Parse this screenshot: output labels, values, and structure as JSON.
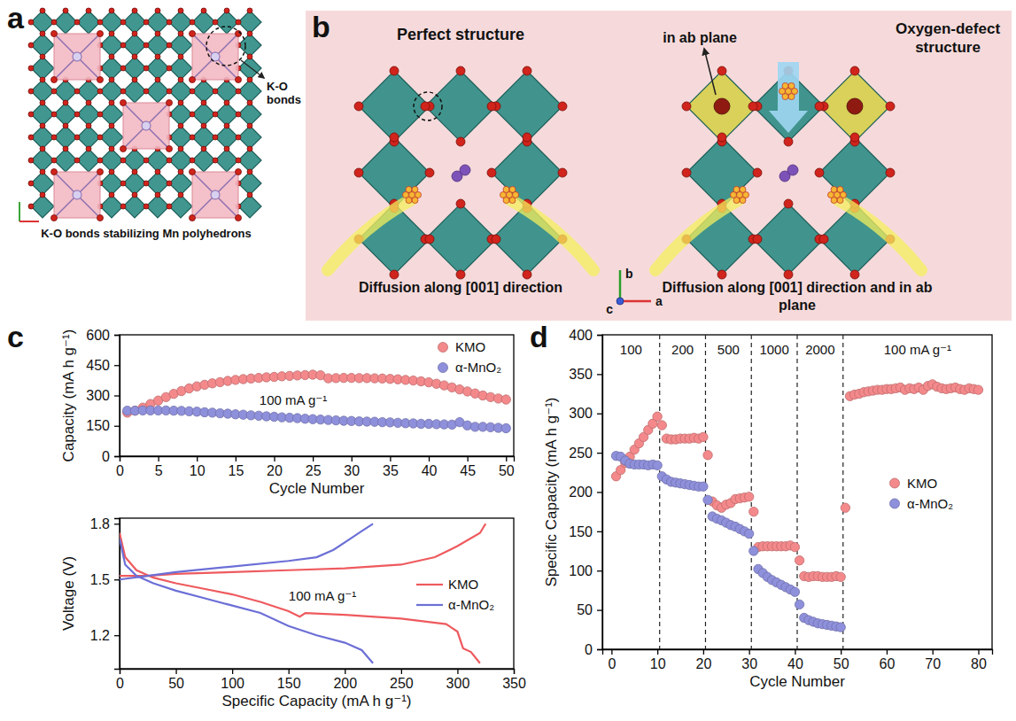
{
  "figure": {
    "panel_a": {
      "panel": "a",
      "callout": "K-O bonds",
      "caption": "K-O bonds stabilizing Mn polyhedrons"
    },
    "panel_b": {
      "panel": "b",
      "structures": [
        {
          "title": "Perfect structure",
          "caption": "Diffusion along [001] direction"
        },
        {
          "title": "Oxygen-defect structure",
          "callout": "in ab plane",
          "caption": "Diffusion along [001] direction and in ab plane"
        }
      ],
      "axis_labels": [
        "b",
        "a",
        "c"
      ]
    }
  },
  "chart_data": [
    {
      "panel": "c",
      "type": "scatter",
      "marker": "circle",
      "xlabel": "Cycle Number",
      "ylabel": "Capacity (mA h g⁻¹)",
      "annotation": "100 mA g⁻¹",
      "xlim": [
        0,
        51
      ],
      "xticks": [
        0,
        5,
        10,
        15,
        20,
        25,
        30,
        35,
        40,
        45,
        50
      ],
      "ylim": [
        0,
        600
      ],
      "yticks": [
        0,
        150,
        300,
        450,
        600
      ],
      "legend": "upper right",
      "series": [
        {
          "name": "KMO",
          "color": "#f4898b",
          "x": [
            1,
            2,
            3,
            4,
            5,
            6,
            7,
            8,
            9,
            10,
            11,
            12,
            13,
            14,
            15,
            16,
            17,
            18,
            19,
            20,
            21,
            22,
            23,
            24,
            25,
            26,
            27,
            28,
            29,
            30,
            31,
            32,
            33,
            34,
            35,
            36,
            37,
            38,
            39,
            40,
            41,
            42,
            43,
            44,
            45,
            46,
            47,
            48,
            49,
            50
          ],
          "values": [
            215,
            225,
            240,
            258,
            275,
            292,
            308,
            322,
            335,
            345,
            353,
            360,
            366,
            372,
            377,
            381,
            384,
            387,
            390,
            392,
            395,
            397,
            399,
            401,
            403,
            400,
            385,
            386,
            387,
            387,
            386,
            386,
            385,
            384,
            382,
            380,
            377,
            374,
            370,
            365,
            358,
            350,
            340,
            330,
            320,
            310,
            300,
            292,
            285,
            280
          ]
        },
        {
          "name": "α-MnO₂",
          "color": "#8f90db",
          "x": [
            1,
            2,
            3,
            4,
            5,
            6,
            7,
            8,
            9,
            10,
            11,
            12,
            13,
            14,
            15,
            16,
            17,
            18,
            19,
            20,
            21,
            22,
            23,
            24,
            25,
            26,
            27,
            28,
            29,
            30,
            31,
            32,
            33,
            34,
            35,
            36,
            37,
            38,
            39,
            40,
            41,
            42,
            43,
            44,
            45,
            46,
            47,
            48,
            49,
            50
          ],
          "values": [
            225,
            225,
            226,
            226,
            226,
            226,
            225,
            224,
            222,
            220,
            217,
            215,
            212,
            210,
            207,
            205,
            202,
            200,
            197,
            195,
            192,
            190,
            188,
            185,
            183,
            181,
            179,
            177,
            175,
            174,
            172,
            171,
            170,
            168,
            167,
            165,
            163,
            162,
            160,
            160,
            158,
            157,
            156,
            168,
            152,
            145,
            145,
            143,
            140,
            138
          ]
        }
      ]
    },
    {
      "type": "line",
      "xlabel": "Specific Capacity (mA h g⁻¹)",
      "ylabel": "Voltage (V)",
      "annotation": "100 mA g⁻¹",
      "xlim": [
        0,
        350
      ],
      "xticks": [
        0,
        50,
        100,
        150,
        200,
        250,
        300,
        350
      ],
      "ylim": [
        1.02,
        1.83
      ],
      "yticks": [
        1.2,
        1.5,
        1.8
      ],
      "legend": "right",
      "series": [
        {
          "name": "KMO",
          "color": "#ee5a5e",
          "x": [
            0,
            5,
            15,
            30,
            50,
            75,
            100,
            125,
            150,
            160,
            165,
            200,
            250,
            290,
            300,
            305,
            312,
            320,
            null,
            0,
            25,
            50,
            100,
            150,
            200,
            250,
            280,
            300,
            320,
            325
          ],
          "values": [
            1.75,
            1.62,
            1.55,
            1.51,
            1.48,
            1.45,
            1.42,
            1.38,
            1.33,
            1.3,
            1.32,
            1.31,
            1.29,
            1.26,
            1.22,
            1.13,
            1.11,
            1.05,
            null,
            1.52,
            1.52,
            1.53,
            1.54,
            1.55,
            1.56,
            1.58,
            1.62,
            1.68,
            1.75,
            1.8
          ]
        },
        {
          "name": "α-MnO₂",
          "color": "#6c6fd6",
          "x": [
            0,
            5,
            15,
            30,
            50,
            75,
            100,
            125,
            150,
            175,
            200,
            215,
            225,
            null,
            0,
            25,
            50,
            100,
            150,
            175,
            190,
            205,
            215,
            225
          ],
          "values": [
            1.72,
            1.58,
            1.52,
            1.48,
            1.44,
            1.4,
            1.36,
            1.32,
            1.25,
            1.2,
            1.16,
            1.12,
            1.05,
            null,
            1.5,
            1.52,
            1.54,
            1.57,
            1.6,
            1.62,
            1.66,
            1.72,
            1.76,
            1.8
          ]
        }
      ]
    },
    {
      "panel": "d",
      "type": "scatter",
      "marker": "circle",
      "xlabel": "Cycle Number",
      "ylabel": "Specific Capacity (mA h g⁻¹)",
      "xlim": [
        -2,
        83
      ],
      "xticks": [
        0,
        10,
        20,
        30,
        40,
        50,
        60,
        70,
        80
      ],
      "ylim": [
        0,
        400
      ],
      "yticks": [
        0,
        50,
        100,
        150,
        200,
        250,
        300,
        350,
        400
      ],
      "legend": "right",
      "dividers": [
        10.5,
        20.5,
        30.5,
        40.5,
        50.5
      ],
      "rate_labels": [
        "100",
        "200",
        "500",
        "1000",
        "2000",
        "100 mA g⁻¹"
      ],
      "series": [
        {
          "name": "KMO",
          "color": "#f4898b",
          "x": [
            1,
            2,
            3,
            4,
            5,
            6,
            7,
            8,
            9,
            10,
            11,
            12,
            13,
            14,
            15,
            16,
            17,
            18,
            19,
            20,
            21,
            22,
            23,
            24,
            25,
            26,
            27,
            28,
            29,
            30,
            31,
            32,
            33,
            34,
            35,
            36,
            37,
            38,
            39,
            40,
            41,
            42,
            43,
            44,
            45,
            46,
            47,
            48,
            49,
            50,
            51,
            52,
            53,
            54,
            55,
            56,
            57,
            58,
            59,
            60,
            61,
            62,
            63,
            64,
            65,
            66,
            67,
            68,
            69,
            70,
            71,
            72,
            73,
            74,
            75,
            76,
            77,
            78,
            79,
            80
          ],
          "values": [
            220,
            228,
            237,
            245,
            254,
            262,
            270,
            279,
            287,
            296,
            285,
            268,
            267,
            267,
            268,
            268,
            268,
            269,
            268,
            270,
            247,
            188,
            183,
            180,
            184,
            186,
            191,
            192,
            193,
            194,
            175,
            130,
            131,
            131,
            131,
            131,
            131,
            131,
            132,
            130,
            113,
            93,
            92,
            93,
            93,
            92,
            92,
            92,
            93,
            92,
            180,
            322,
            324,
            325,
            327,
            328,
            329,
            330,
            330,
            331,
            331,
            332,
            333,
            330,
            332,
            331,
            333,
            330,
            335,
            337,
            334,
            332,
            331,
            332,
            333,
            331,
            330,
            332,
            331,
            330
          ]
        },
        {
          "name": "α-MnO₂",
          "color": "#8f90db",
          "x": [
            1,
            2,
            3,
            4,
            5,
            6,
            7,
            8,
            9,
            10,
            11,
            12,
            13,
            14,
            15,
            16,
            17,
            18,
            19,
            20,
            21,
            22,
            23,
            24,
            25,
            26,
            27,
            28,
            29,
            30,
            31,
            32,
            33,
            34,
            35,
            36,
            37,
            38,
            39,
            40,
            41,
            42,
            43,
            44,
            45,
            46,
            47,
            48,
            49,
            50
          ],
          "values": [
            246,
            245,
            240,
            236,
            235,
            235,
            235,
            234,
            235,
            234,
            220,
            216,
            213,
            212,
            211,
            210,
            209,
            208,
            207,
            207,
            190,
            169,
            166,
            164,
            161,
            158,
            156,
            153,
            150,
            147,
            125,
            102,
            97,
            92,
            88,
            85,
            82,
            79,
            76,
            73,
            57,
            40,
            37,
            35,
            33,
            32,
            31,
            30,
            29,
            28
          ]
        }
      ]
    }
  ]
}
